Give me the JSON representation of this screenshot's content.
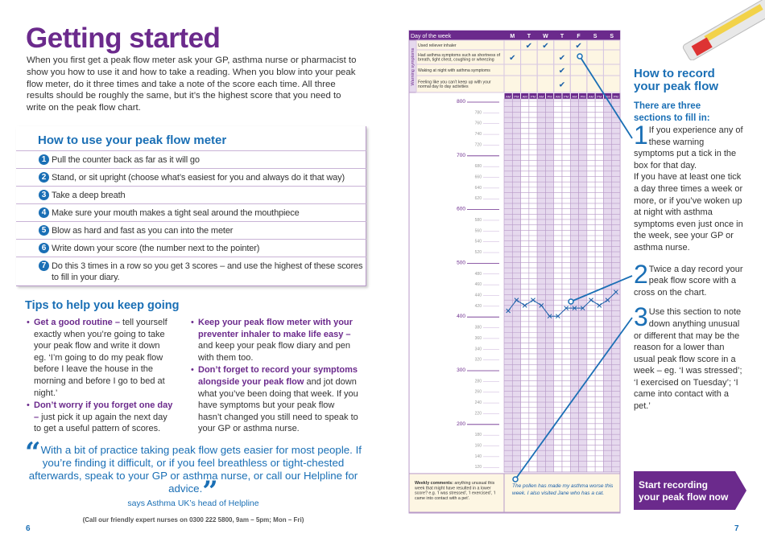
{
  "left": {
    "title": "Getting started",
    "intro": "When you first get a peak flow meter ask your GP, asthma nurse or pharmacist to show you how to use it and how to take a reading. When you blow into your peak flow meter, do it three times and take a note of the score each time. All three results should be roughly the same, but it’s the highest score that you need to write on the peak flow chart.",
    "howto": {
      "title": "How to use your peak flow meter",
      "steps": [
        {
          "n": "1",
          "text": "Pull the counter back as far as it will go"
        },
        {
          "n": "2",
          "text": "Stand, or sit upright (choose what’s easiest for you and always do it that way)"
        },
        {
          "n": "3",
          "text": "Take a deep breath"
        },
        {
          "n": "4",
          "text": "Make sure your mouth makes a tight seal around the mouthpiece"
        },
        {
          "n": "5",
          "text": "Blow as hard and fast as you can into the meter"
        },
        {
          "n": "6",
          "text": "Write down your score (the number next to the pointer)"
        },
        {
          "n": "7",
          "text": "Do this 3 times in a row so you get 3 scores – and use the highest of these scores to fill in your diary."
        }
      ]
    },
    "tips": {
      "title": "Tips to help you keep going",
      "items": [
        {
          "bold": "Get a good routine –",
          "text": " tell yourself exactly when you’re going to take your peak flow and write it down eg. ‘I’m going to do my peak flow before I leave the house in the morning and before I go to bed at night.’"
        },
        {
          "bold": "Don’t worry if you forget one day –",
          "text": " just pick it up again the next day to get a useful pattern of scores."
        },
        {
          "bold": "Keep your peak flow meter with your preventer inhaler to make life easy –",
          "text": " and keep your peak flow diary and pen with them too."
        },
        {
          "bold": "Don’t forget to record your symptoms alongside your peak flow",
          "text": " and jot down what you’ve been doing that week. If you have symptoms but your peak flow hasn’t changed you still need to speak to your GP or asthma nurse."
        }
      ]
    },
    "quote": "With a bit of practice taking peak flow gets easier for most people. If you’re finding it difficult, or if you feel breathless or tight-chested afterwards, speak to your GP or asthma nurse, or call our Helpline for advice.",
    "attribution": "says Asthma UK’s head of Helpline",
    "helpline": "(Call our friendly expert nurses on 0300 222 5800, 9am – 5pm; Mon – Fri)",
    "page": "6"
  },
  "chart": {
    "header": "Day of the week",
    "days": [
      "M",
      "T",
      "W",
      "T",
      "F",
      "S",
      "S"
    ],
    "section_label": "Warning symptoms",
    "symptoms": [
      {
        "label": "Used reliever inhaler",
        "ticks": [
          1,
          2,
          4
        ]
      },
      {
        "label": "Had asthma symptoms such as shortness of breath, tight chest, coughing or wheezing",
        "ticks": [
          0,
          3
        ]
      },
      {
        "label": "Waking at night with asthma symptoms",
        "ticks": [
          3
        ]
      },
      {
        "label": "Feeling like you can’t keep up with your normal day to day activities",
        "ticks": [
          3
        ]
      }
    ],
    "tick_glyph": "✔",
    "ampm": [
      "AM",
      "PM"
    ],
    "major_labels": [
      "800",
      "700",
      "600",
      "500",
      "400",
      "300",
      "200"
    ],
    "minor_labels": [
      "780",
      "760",
      "740",
      "720",
      "680",
      "660",
      "640",
      "620",
      "580",
      "560",
      "540",
      "520",
      "480",
      "460",
      "440",
      "420",
      "380",
      "360",
      "340",
      "320",
      "280",
      "260",
      "240",
      "220",
      "180",
      "160",
      "140",
      "120"
    ],
    "comments_label_bold": "Weekly comments:",
    "comments_label": " anything unusual this week that might have resulted in a lower score? e.g. ‘I was stressed’, ‘I exercised’, ‘I came into contact with a pet’.",
    "comments_value": "The pollen has made my asthma worse this week. I also visited Jane who has a cat.",
    "colors": {
      "purple": "#6b2a8c",
      "line": "#1a6fb5",
      "cream": "#fdf6e3",
      "shade": "#e6d9ee"
    }
  },
  "chart_data": {
    "type": "line",
    "categories": [
      "M AM",
      "M PM",
      "T AM",
      "T PM",
      "W AM",
      "W PM",
      "T AM",
      "T PM",
      "F AM",
      "F PM",
      "S AM",
      "S PM",
      "S AM",
      "S PM"
    ],
    "values": [
      410,
      430,
      420,
      430,
      420,
      400,
      400,
      415,
      415,
      415,
      430,
      420,
      430,
      445
    ],
    "ylim": [
      110,
      800
    ]
  },
  "right": {
    "title": "How to record your peak flow",
    "subtitle": "There are three sections to fill in:",
    "s1_num": "1",
    "s1": "If you experience any of these warning symptoms put a tick in the box for that day.",
    "s1b": "If you have at least one tick a day three times a week or more, or if you’ve woken up at night with asthma symptoms even just once in the week, see your GP or asthma nurse.",
    "s2_num": "2",
    "s2": "Twice a day record your peak flow score with a cross on the chart.",
    "s3_num": "3",
    "s3": "Use this section to note down anything unusual or different that may be the reason for a lower than usual peak flow score in a week – eg. ‘I was stressed’; ‘I exercised on Tuesday’; ‘I came into contact with a pet.’",
    "cta": "Start recording your peak flow now",
    "page": "7"
  }
}
